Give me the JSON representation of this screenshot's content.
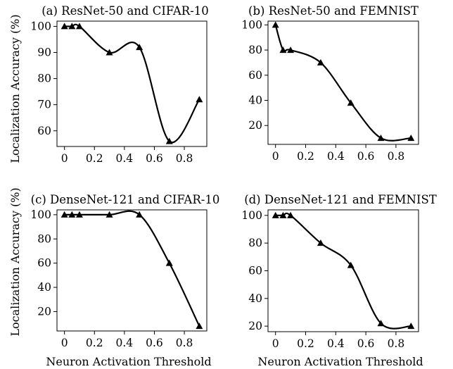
{
  "figure": {
    "ylabel": "Localization Accuracy (%)",
    "xlabel": "Neuron Activation Threshold"
  },
  "chart_data": [
    {
      "type": "line",
      "title": "(a) ResNet-50 and CIFAR-10",
      "xlabel": "",
      "ylabel": "Localization Accuracy (%)",
      "xlim": [
        -0.05,
        0.95
      ],
      "ylim": [
        54,
        102
      ],
      "xticks": [
        0,
        0.2,
        0.4,
        0.6,
        0.8
      ],
      "xtick_labels": [
        "0",
        "0.2",
        "0.4",
        "0.6",
        "0.8"
      ],
      "yticks": [
        60,
        70,
        80,
        90,
        100
      ],
      "grid": false,
      "marker": "triangle",
      "color": "#000000",
      "x": [
        0,
        0.05,
        0.1,
        0.3,
        0.5,
        0.7,
        0.9
      ],
      "values": [
        100,
        100,
        100,
        90,
        92,
        56,
        72
      ]
    },
    {
      "type": "line",
      "title": "(b) ResNet-50 and FEMNIST",
      "xlabel": "",
      "ylabel": "",
      "xlim": [
        -0.05,
        0.95
      ],
      "ylim": [
        5,
        103
      ],
      "xticks": [
        0,
        0.2,
        0.4,
        0.6,
        0.8
      ],
      "xtick_labels": [
        "0",
        "0.2",
        "0.4",
        "0.6",
        "0.8"
      ],
      "yticks": [
        20,
        40,
        60,
        80,
        100
      ],
      "grid": false,
      "marker": "triangle",
      "color": "#000000",
      "x": [
        0,
        0.05,
        0.1,
        0.3,
        0.5,
        0.7,
        0.9
      ],
      "values": [
        100,
        80,
        80,
        70,
        38,
        10,
        10
      ]
    },
    {
      "type": "line",
      "title": "(c) DenseNet-121 and CIFAR-10",
      "xlabel": "Neuron Activation Threshold",
      "ylabel": "Localization Accuracy (%)",
      "xlim": [
        -0.05,
        0.95
      ],
      "ylim": [
        4,
        104
      ],
      "xticks": [
        0,
        0.2,
        0.4,
        0.6,
        0.8
      ],
      "xtick_labels": [
        "0",
        "0.2",
        "0.4",
        "0.6",
        "0.8"
      ],
      "yticks": [
        20,
        40,
        60,
        80,
        100
      ],
      "grid": false,
      "marker": "triangle",
      "color": "#000000",
      "x": [
        0,
        0.05,
        0.1,
        0.3,
        0.5,
        0.7,
        0.9
      ],
      "values": [
        100,
        100,
        100,
        100,
        100,
        60,
        8
      ]
    },
    {
      "type": "line",
      "title": "(d) DenseNet-121 and FEMNIST",
      "xlabel": "Neuron Activation Threshold",
      "ylabel": "",
      "xlim": [
        -0.05,
        0.95
      ],
      "ylim": [
        16,
        104
      ],
      "xticks": [
        0,
        0.2,
        0.4,
        0.6,
        0.8
      ],
      "xtick_labels": [
        "0",
        "0.2",
        "0.4",
        "0.6",
        "0.8"
      ],
      "yticks": [
        20,
        40,
        60,
        80,
        100
      ],
      "grid": false,
      "marker": "triangle",
      "color": "#000000",
      "x": [
        0,
        0.05,
        0.1,
        0.3,
        0.5,
        0.7,
        0.9
      ],
      "values": [
        100,
        100,
        100,
        80,
        64,
        22,
        20
      ]
    }
  ]
}
